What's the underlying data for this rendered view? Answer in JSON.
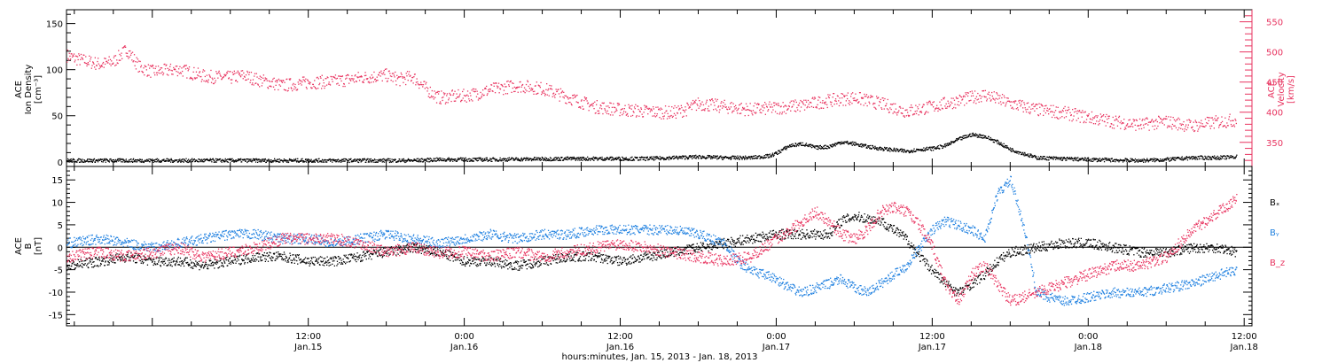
{
  "colors": {
    "black": "#000000",
    "pink": "#e8335f",
    "blue": "#1f80e0"
  },
  "xaxis": {
    "title": "hours:minutes, Jan. 15, 2013 - Jan. 18, 2013",
    "range_hours": [
      -6.6,
      84.6
    ],
    "ticks": [
      {
        "hours": 12,
        "time": "12:00",
        "date": "Jan.15"
      },
      {
        "hours": 24,
        "time": "0:00",
        "date": "Jan.16"
      },
      {
        "hours": 36,
        "time": "12:00",
        "date": "Jan.16"
      },
      {
        "hours": 48,
        "time": "0:00",
        "date": "Jan.17"
      },
      {
        "hours": 60,
        "time": "12:00",
        "date": "Jan.17"
      },
      {
        "hours": 72,
        "time": "0:00",
        "date": "Jan.18"
      },
      {
        "hours": 84,
        "time": "12:00",
        "date": "Jan.18"
      }
    ]
  },
  "chart_data": [
    {
      "type": "scatter",
      "panel": "plasma",
      "ylabel_left": [
        "ACE",
        "Ion Density",
        "[cm⁻³]"
      ],
      "ylabel_right": [
        "ACE",
        "Velocity",
        "[km/s]"
      ],
      "ylim_left": [
        -5,
        165
      ],
      "ylim_right": [
        310,
        570
      ],
      "yticks_left": [
        0,
        50,
        100,
        150
      ],
      "yticks_right": [
        350,
        400,
        450,
        500,
        550
      ],
      "series": [
        {
          "key": "density",
          "axis": "left",
          "color": "#000000",
          "x_hours": [
            -6.6,
            -2,
            2,
            8,
            14,
            20,
            22,
            23.5,
            26,
            32,
            38,
            42,
            44,
            46,
            47.5,
            48,
            49,
            50,
            51,
            52,
            53,
            54,
            55,
            56,
            58,
            59,
            60,
            61,
            62,
            63,
            64,
            65,
            66,
            68,
            72,
            76,
            78,
            80,
            82,
            83.4
          ],
          "y": [
            2,
            2,
            2,
            2,
            2,
            2,
            3,
            3,
            3,
            4,
            4,
            6,
            5,
            5,
            7,
            10,
            18,
            20,
            16,
            17,
            22,
            20,
            17,
            15,
            12,
            14,
            15,
            18,
            25,
            30,
            28,
            22,
            14,
            5,
            3,
            2,
            3,
            5,
            5,
            6
          ]
        },
        {
          "key": "velocity",
          "axis": "right",
          "color": "#e8335f",
          "x_hours": [
            -6.6,
            -6,
            -4,
            -3,
            -2,
            -1,
            0,
            2,
            4,
            6,
            7,
            8,
            10,
            12,
            14,
            16,
            18,
            19,
            20,
            21,
            22,
            24,
            25,
            26,
            28,
            30,
            32,
            34,
            36,
            38,
            40,
            41,
            42,
            44,
            46,
            48,
            50,
            52,
            54,
            56,
            58,
            60,
            62,
            64,
            66,
            68,
            70,
            72,
            74,
            76,
            78,
            80,
            82,
            83.4
          ],
          "y": [
            495,
            490,
            480,
            485,
            505,
            475,
            468,
            472,
            460,
            458,
            462,
            455,
            445,
            450,
            452,
            458,
            462,
            455,
            460,
            440,
            425,
            428,
            432,
            438,
            445,
            440,
            425,
            410,
            405,
            402,
            400,
            405,
            415,
            410,
            405,
            408,
            412,
            420,
            425,
            415,
            402,
            410,
            420,
            430,
            415,
            405,
            400,
            392,
            385,
            380,
            385,
            378,
            385,
            388
          ]
        }
      ]
    },
    {
      "type": "scatter",
      "panel": "imf",
      "ylabel_left": [
        "ACE",
        "B",
        "[nT]"
      ],
      "ylim": [
        -17.5,
        18
      ],
      "yticks": [
        -15,
        -10,
        -5,
        0,
        5,
        10,
        15
      ],
      "zero_line": true,
      "series": [
        {
          "key": "bx",
          "name": "Bₓ",
          "color": "#000000",
          "x_hours": [
            -6.6,
            -4,
            -2,
            0,
            2,
            4,
            6,
            8,
            10,
            12,
            14,
            16,
            18,
            20,
            22,
            24,
            26,
            28,
            30,
            32,
            34,
            36,
            38,
            40,
            42,
            44,
            46,
            48,
            50,
            52,
            53,
            54,
            56,
            57,
            58,
            59,
            60,
            61,
            62,
            63,
            64,
            65,
            66,
            68,
            70,
            72,
            74,
            76,
            78,
            80,
            82,
            83.4
          ],
          "y": [
            -4,
            -3,
            -2,
            -3,
            -3,
            -4,
            -3,
            -2,
            -2,
            -3,
            -3,
            -2,
            -1,
            0,
            -1,
            -3,
            -3,
            -4,
            -3,
            -2,
            -2,
            -3,
            -2,
            -1,
            0,
            1,
            2,
            3,
            3,
            3,
            6,
            7,
            6,
            4,
            2,
            -2,
            -5,
            -8,
            -10,
            -8,
            -6,
            -3,
            -1,
            0,
            1,
            1,
            0,
            -1,
            -1,
            0,
            0,
            -1
          ]
        },
        {
          "key": "by",
          "name": "Bᵧ",
          "color": "#1f80e0",
          "x_hours": [
            -6.6,
            -4,
            -2,
            0,
            2,
            4,
            6,
            8,
            10,
            12,
            14,
            16,
            18,
            20,
            22,
            24,
            26,
            28,
            30,
            32,
            34,
            36,
            38,
            40,
            42,
            44,
            45,
            46,
            47,
            48,
            49,
            50,
            51,
            52,
            53,
            54,
            55,
            56,
            57,
            58,
            59,
            60,
            61,
            62,
            63,
            64,
            65,
            66,
            67,
            68,
            70,
            72,
            74,
            76,
            78,
            80,
            82,
            83.4
          ],
          "y": [
            1,
            2,
            1,
            0,
            1,
            2,
            3,
            3,
            2,
            2,
            1,
            2,
            3,
            2,
            1,
            2,
            3,
            2,
            3,
            3,
            4,
            4,
            4,
            4,
            3,
            1,
            -3,
            -5,
            -6,
            -7,
            -9,
            -10,
            -9,
            -8,
            -7,
            -9,
            -10,
            -8,
            -6,
            -4,
            0,
            4,
            6,
            5,
            4,
            2,
            12,
            15,
            5,
            -10,
            -12,
            -11,
            -10,
            -10,
            -9,
            -8,
            -6,
            -5
          ]
        },
        {
          "key": "bz",
          "name": "B_z",
          "color": "#e8335f",
          "x_hours": [
            -6.6,
            -4,
            -2,
            0,
            2,
            4,
            6,
            8,
            10,
            12,
            14,
            16,
            18,
            20,
            22,
            24,
            26,
            28,
            30,
            32,
            34,
            36,
            38,
            40,
            42,
            44,
            46,
            47,
            48,
            49,
            50,
            51,
            52,
            53,
            54,
            55,
            56,
            57,
            58,
            59,
            60,
            61,
            62,
            63,
            64,
            65,
            66,
            67,
            68,
            70,
            72,
            74,
            76,
            78,
            80,
            82,
            83.4
          ],
          "y": [
            -2,
            -1,
            -2,
            -1,
            0,
            -2,
            -1,
            0,
            2,
            2,
            2,
            1,
            -1,
            0,
            -1,
            -1,
            -2,
            -1,
            -2,
            -1,
            0,
            1,
            0,
            -1,
            -2,
            -3,
            -2,
            0,
            2,
            4,
            6,
            8,
            6,
            3,
            2,
            4,
            8,
            9,
            8,
            5,
            0,
            -8,
            -12,
            -6,
            -4,
            -8,
            -12,
            -11,
            -10,
            -8,
            -6,
            -4,
            -4,
            -2,
            4,
            8,
            11
          ]
        }
      ]
    }
  ]
}
